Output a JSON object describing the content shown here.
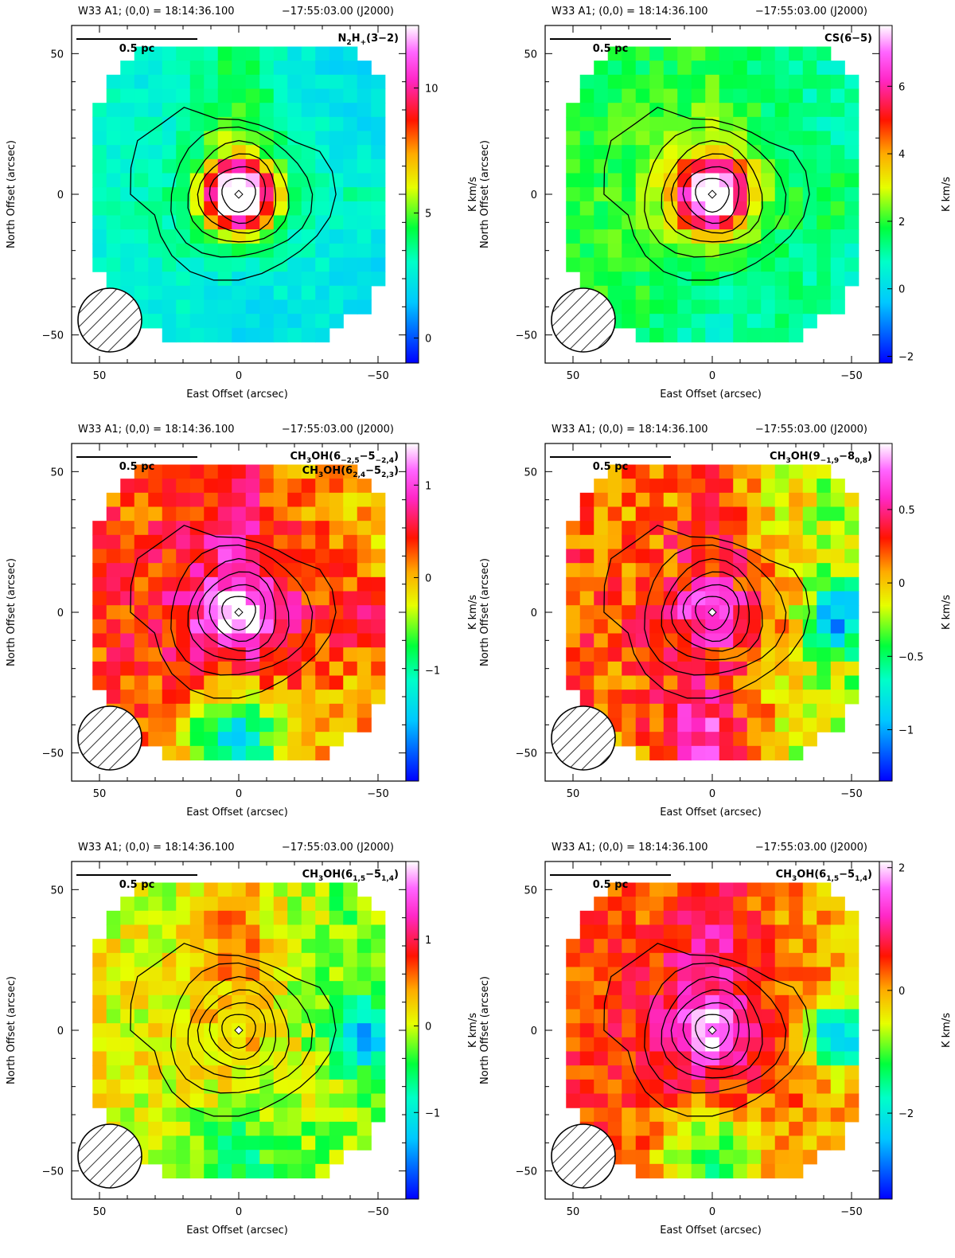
{
  "figure": {
    "panels": 6,
    "layout": "3 rows x 2 columns"
  },
  "chart_data": [
    {
      "type": "heatmap",
      "header": {
        "source": "W33 A1; (0,0) = 18:14:36.100",
        "dec": "−17:55:03.00 (J2000)"
      },
      "line_label": "N2H+(3−2)",
      "line_label_parts": [
        "N",
        "2",
        "H",
        "+",
        "(3−2)"
      ],
      "xlabel": "East Offset (arcsec)",
      "ylabel": "North Offset (arcsec)",
      "colorbar_label": "K km/s",
      "xlim": [
        60,
        -60
      ],
      "ylim": [
        -60,
        60
      ],
      "xticks": [
        "50",
        "0",
        "−50"
      ],
      "xtick_values": [
        50,
        0,
        -50
      ],
      "yticks": [
        "50",
        "0",
        "−50"
      ],
      "ytick_values": [
        50,
        0,
        -50
      ],
      "scalebar_label": "0.5 pc",
      "cbar_range": [
        -1,
        12.5
      ],
      "cbar_ticks": [
        "0",
        "5",
        "10"
      ],
      "cbar_tick_values": [
        0,
        5,
        10
      ],
      "field": {
        "peak": 12.3,
        "bg": 2.3,
        "core_width": 9,
        "halo": 1.2,
        "north_ridge": 1.6,
        "east_west_gradient": 0.4,
        "noise": 0.6,
        "south_dip": -0.8,
        "west_spot": 0.9
      },
      "contours": "integrated intensity"
    },
    {
      "type": "heatmap",
      "header": {
        "source": "W33 A1; (0,0) = 18:14:36.100",
        "dec": "−17:55:03.00 (J2000)"
      },
      "line_label": "CS(6−5)",
      "line_label_parts": [
        "CS(6−5)"
      ],
      "xlabel": "East Offset (arcsec)",
      "ylabel": "North Offset (arcsec)",
      "colorbar_label": "K km/s",
      "xlim": [
        60,
        -60
      ],
      "ylim": [
        -60,
        60
      ],
      "xticks": [
        "50",
        "0",
        "−50"
      ],
      "xtick_values": [
        50,
        0,
        -50
      ],
      "yticks": [
        "50",
        "0",
        "−50"
      ],
      "ytick_values": [
        50,
        0,
        -50
      ],
      "scalebar_label": "0.5 pc",
      "cbar_range": [
        -2.2,
        7.8
      ],
      "cbar_ticks": [
        "−2",
        "0",
        "2",
        "4",
        "6"
      ],
      "cbar_tick_values": [
        -2,
        0,
        2,
        4,
        6
      ],
      "field": {
        "peak": 7.3,
        "bg": 1.3,
        "core_width": 9,
        "halo": 0.9,
        "north_ridge": 0.4,
        "east_west_gradient": 0.6,
        "noise": 0.5,
        "south_dip": -0.7,
        "west_spot": 0.8
      },
      "contours": "integrated intensity"
    },
    {
      "type": "heatmap",
      "header": {
        "source": "W33 A1; (0,0) = 18:14:36.100",
        "dec": "−17:55:03.00 (J2000)"
      },
      "line_label": "CH3OH(6−2,5−5−2,4) CH3OH(62,4−52,3)",
      "line_label_parts": [
        "CH",
        "3",
        "OH(6",
        "−2,5",
        "−5",
        "−2,4",
        ")"
      ],
      "line_label2_parts": [
        "CH",
        "3",
        "OH(6",
        "2,4",
        "−5",
        "2,3",
        ")"
      ],
      "xlabel": "East Offset (arcsec)",
      "ylabel": "North Offset (arcsec)",
      "colorbar_label": "K km/s",
      "xlim": [
        60,
        -60
      ],
      "ylim": [
        -60,
        60
      ],
      "xticks": [
        "50",
        "0",
        "−50"
      ],
      "xtick_values": [
        50,
        0,
        -50
      ],
      "yticks": [
        "50",
        "0",
        "−50"
      ],
      "ytick_values": [
        50,
        0,
        -50
      ],
      "scalebar_label": "0.5 pc",
      "cbar_range": [
        -2.2,
        1.45
      ],
      "cbar_ticks": [
        "−1",
        "0",
        "1"
      ],
      "cbar_tick_values": [
        -1,
        0,
        1
      ],
      "field": {
        "peak": 1.0,
        "bg": 0.1,
        "core_width": 10,
        "halo": 0.5,
        "north_ridge": 0.3,
        "east_west_gradient": 0.2,
        "noise": 0.3,
        "south_dip": -1.6,
        "west_spot": 0.7
      },
      "contours": "integrated intensity"
    },
    {
      "type": "heatmap",
      "header": {
        "source": "W33 A1; (0,0) = 18:14:36.100",
        "dec": "−17:55:03.00 (J2000)"
      },
      "line_label": "CH3OH(9−1,9−80,8)",
      "line_label_parts": [
        "CH",
        "3",
        "OH(9",
        "−1,9",
        "−8",
        "0,8",
        ")"
      ],
      "xlabel": "East Offset (arcsec)",
      "ylabel": "North Offset (arcsec)",
      "colorbar_label": "K km/s",
      "xlim": [
        60,
        -60
      ],
      "ylim": [
        -60,
        60
      ],
      "xticks": [
        "50",
        "0",
        "−50"
      ],
      "xtick_values": [
        50,
        0,
        -50
      ],
      "yticks": [
        "50",
        "0",
        "−50"
      ],
      "ytick_values": [
        50,
        0,
        -50
      ],
      "scalebar_label": "0.5 pc",
      "cbar_range": [
        -1.35,
        0.95
      ],
      "cbar_ticks": [
        "−1",
        "−0.5",
        "0",
        "0.5"
      ],
      "cbar_tick_values": [
        -1,
        -0.5,
        0,
        0.5
      ],
      "field": {
        "peak": 0.45,
        "bg": -0.05,
        "core_width": 10,
        "halo": 0.3,
        "north_ridge": 0.2,
        "east_west_gradient": 0.25,
        "noise": 0.22,
        "south_dip": 0.6,
        "west_spot": -0.9
      },
      "contours": "integrated intensity"
    },
    {
      "type": "heatmap",
      "header": {
        "source": "W33 A1; (0,0) = 18:14:36.100",
        "dec": "−17:55:03.00 (J2000)"
      },
      "line_label": "CH3OH(61,5−51,4)",
      "line_label_parts": [
        "CH",
        "3",
        "OH(6",
        "1,5",
        "−5",
        "1,4",
        ")"
      ],
      "xlabel": "East Offset (arcsec)",
      "ylabel": "North Offset (arcsec)",
      "colorbar_label": "K km/s",
      "xlim": [
        60,
        -60
      ],
      "ylim": [
        -60,
        60
      ],
      "xticks": [
        "50",
        "0",
        "−50"
      ],
      "xtick_values": [
        50,
        0,
        -50
      ],
      "yticks": [
        "50",
        "0",
        "−50"
      ],
      "ytick_values": [
        50,
        0,
        -50
      ],
      "scalebar_label": "0.5 pc",
      "cbar_range": [
        -2.0,
        1.9
      ],
      "cbar_ticks": [
        "−1",
        "0",
        "1"
      ],
      "cbar_tick_values": [
        -1,
        0,
        1
      ],
      "field": {
        "peak": 0.2,
        "bg": -0.1,
        "core_width": 10,
        "halo": 0.2,
        "north_ridge": 0.5,
        "east_west_gradient": 0.2,
        "noise": 0.3,
        "south_dip": -0.5,
        "west_spot": -1.3
      },
      "contours": "integrated intensity"
    },
    {
      "type": "heatmap",
      "header": {
        "source": "W33 A1; (0,0) = 18:14:36.100",
        "dec": "−17:55:03.00 (J2000)"
      },
      "line_label": "CH3OH(61,5−51,4)",
      "line_label_parts": [
        "CH",
        "3",
        "OH(6",
        "1,5",
        "−5",
        "1,4",
        ")"
      ],
      "xlabel": "East Offset (arcsec)",
      "ylabel": "North Offset (arcsec)",
      "colorbar_label": "K km/s",
      "xlim": [
        60,
        -60
      ],
      "ylim": [
        -60,
        60
      ],
      "xticks": [
        "50",
        "0",
        "−50"
      ],
      "xtick_values": [
        50,
        0,
        -50
      ],
      "yticks": [
        "50",
        "0",
        "−50"
      ],
      "ytick_values": [
        50,
        0,
        -50
      ],
      "scalebar_label": "0.5 pc",
      "cbar_range": [
        -3.4,
        2.1
      ],
      "cbar_ticks": [
        "−2",
        "0",
        "2"
      ],
      "cbar_tick_values": [
        -2,
        0,
        2
      ],
      "field": {
        "peak": 1.3,
        "bg": 0.1,
        "core_width": 10,
        "halo": 0.6,
        "north_ridge": 0.6,
        "east_west_gradient": 0.3,
        "noise": 0.4,
        "south_dip": -1.6,
        "west_spot": -2.6
      },
      "contours": "integrated intensity"
    }
  ]
}
